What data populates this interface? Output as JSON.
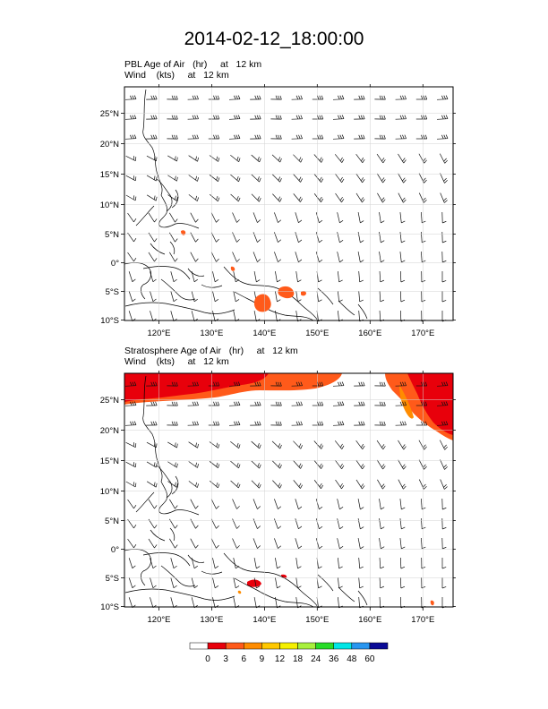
{
  "title": "2014-02-12_18:00:00",
  "panels": [
    {
      "line1": "PBL Age of Air   (hr)     at   12 km",
      "line2": "Wind    (kts)     at   12 km"
    },
    {
      "line1": "Stratosphere Age of Air   (hr)     at   12 km",
      "line2": "Wind    (kts)     at   12 km"
    }
  ],
  "axes": {
    "lon_ticks": [
      "120°E",
      "130°E",
      "140°E",
      "150°E",
      "160°E",
      "170°E"
    ],
    "lat_ticks": [
      "25°N",
      "20°N",
      "15°N",
      "10°N",
      "5°N",
      "0°",
      "5°S",
      "10°S"
    ]
  },
  "colorbar": {
    "labels": [
      "0",
      "3",
      "6",
      "9",
      "12",
      "18",
      "24",
      "36",
      "48",
      "60"
    ],
    "colors": [
      "#ffffff",
      "#e8000b",
      "#ff5a1a",
      "#ff8c00",
      "#ffc800",
      "#f5f000",
      "#a8f03c",
      "#28dc28",
      "#00e6e6",
      "#2896f0",
      "#0a0a96"
    ]
  },
  "map_colors": {
    "deep": "#e8000b",
    "mid": "#ff5a1a",
    "light": "#ff8c00"
  }
}
